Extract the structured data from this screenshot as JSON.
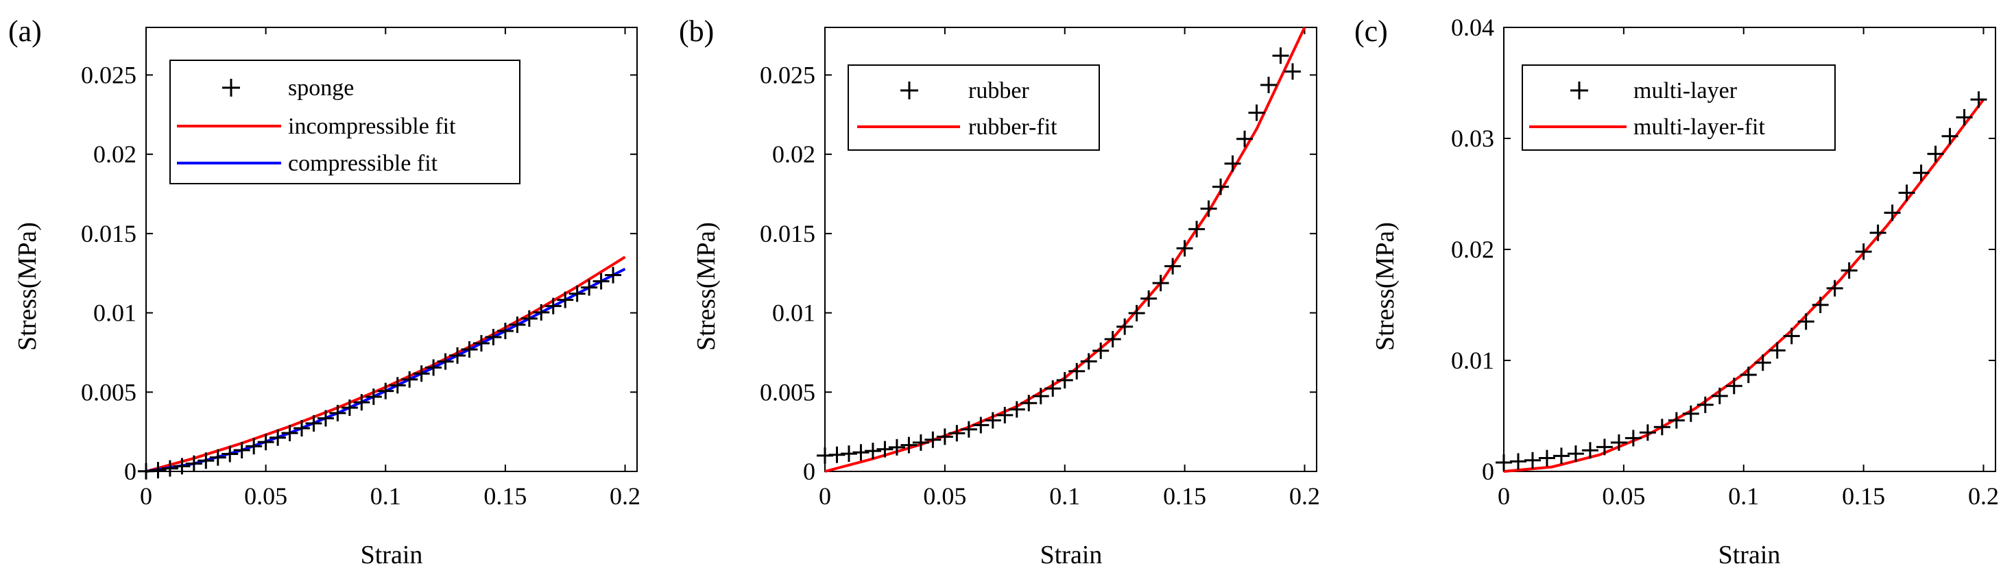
{
  "chart_data": [
    {
      "panel_label": "(a)",
      "type": "line",
      "xlabel": "Strain",
      "ylabel": "Stress(MPa)",
      "xlim": [
        0,
        0.205
      ],
      "ylim": [
        0,
        0.028
      ],
      "xticks": [
        0,
        0.05,
        0.1,
        0.15,
        0.2
      ],
      "xtick_labels": [
        "0",
        "0.05",
        "0.1",
        "0.15",
        "0.2"
      ],
      "yticks": [
        0,
        0.005,
        0.01,
        0.015,
        0.02,
        0.025
      ],
      "ytick_labels": [
        "0",
        "0.005",
        "0.01",
        "0.015",
        "0.02",
        "0.025"
      ],
      "legend": "top-left",
      "series": [
        {
          "name": "sponge",
          "kind": "markers",
          "marker": "+",
          "color": "#000000",
          "x": [
            0,
            0.005,
            0.01,
            0.015,
            0.02,
            0.025,
            0.03,
            0.035,
            0.04,
            0.045,
            0.05,
            0.055,
            0.06,
            0.065,
            0.07,
            0.075,
            0.08,
            0.085,
            0.09,
            0.095,
            0.1,
            0.105,
            0.11,
            0.115,
            0.12,
            0.125,
            0.13,
            0.135,
            0.14,
            0.145,
            0.15,
            0.155,
            0.16,
            0.165,
            0.17,
            0.175,
            0.18,
            0.185,
            0.19,
            0.195
          ],
          "y": [
            1e-05,
            8e-05,
            0.00019,
            0.00033,
            0.00049,
            0.00068,
            0.00088,
            0.0011,
            0.00134,
            0.00159,
            0.00185,
            0.00213,
            0.00242,
            0.00272,
            0.00303,
            0.00335,
            0.00368,
            0.00402,
            0.00436,
            0.00471,
            0.00507,
            0.00543,
            0.0058,
            0.00617,
            0.00655,
            0.00693,
            0.00731,
            0.00769,
            0.00808,
            0.00847,
            0.00886,
            0.00925,
            0.00964,
            0.01003,
            0.01043,
            0.01082,
            0.01121,
            0.0116,
            0.01199,
            0.01238
          ]
        },
        {
          "name": "incompressible fit",
          "kind": "line",
          "color": "#ff0000",
          "x": [
            0,
            0.02,
            0.04,
            0.06,
            0.08,
            0.1,
            0.12,
            0.14,
            0.16,
            0.18,
            0.2
          ],
          "y": [
            0,
            0.00083,
            0.00178,
            0.00284,
            0.00402,
            0.00531,
            0.00672,
            0.00824,
            0.00989,
            0.01165,
            0.01352
          ]
        },
        {
          "name": "compressible fit",
          "kind": "line",
          "color": "#0000ff",
          "x": [
            0,
            0.02,
            0.04,
            0.06,
            0.08,
            0.1,
            0.12,
            0.14,
            0.16,
            0.18,
            0.2
          ],
          "y": [
            0,
            0.00049,
            0.00134,
            0.00242,
            0.00368,
            0.00507,
            0.00655,
            0.00808,
            0.00964,
            0.01121,
            0.01277
          ]
        }
      ]
    },
    {
      "panel_label": "(b)",
      "type": "line",
      "xlabel": "Strain",
      "ylabel": "Stress(MPa)",
      "xlim": [
        0,
        0.205
      ],
      "ylim": [
        0,
        0.028
      ],
      "xticks": [
        0,
        0.05,
        0.1,
        0.15,
        0.2
      ],
      "xtick_labels": [
        "0",
        "0.05",
        "0.1",
        "0.15",
        "0.2"
      ],
      "yticks": [
        0,
        0.005,
        0.01,
        0.015,
        0.02,
        0.025
      ],
      "ytick_labels": [
        "0",
        "0.005",
        "0.01",
        "0.015",
        "0.02",
        "0.025"
      ],
      "legend": "top-left",
      "series": [
        {
          "name": "rubber",
          "kind": "markers",
          "marker": "+",
          "color": "#000000",
          "x": [
            0,
            0.005,
            0.01,
            0.015,
            0.02,
            0.025,
            0.03,
            0.035,
            0.04,
            0.045,
            0.05,
            0.055,
            0.06,
            0.065,
            0.07,
            0.075,
            0.08,
            0.085,
            0.09,
            0.095,
            0.1,
            0.105,
            0.11,
            0.115,
            0.12,
            0.125,
            0.13,
            0.135,
            0.14,
            0.145,
            0.15,
            0.155,
            0.16,
            0.165,
            0.17,
            0.175,
            0.18,
            0.185,
            0.19,
            0.195
          ],
          "y": [
            0.001,
            0.00105,
            0.00112,
            0.0012,
            0.00129,
            0.0014,
            0.00152,
            0.00166,
            0.00182,
            0.002,
            0.00219,
            0.00241,
            0.00265,
            0.00292,
            0.00322,
            0.00355,
            0.00391,
            0.00431,
            0.00475,
            0.00523,
            0.00575,
            0.00632,
            0.00694,
            0.00761,
            0.00834,
            0.00913,
            0.00998,
            0.0109,
            0.01188,
            0.01294,
            0.01407,
            0.01528,
            0.01657,
            0.01795,
            0.01941,
            0.02097,
            0.02262,
            0.02437,
            0.02622,
            0.02522
          ]
        },
        {
          "name": "rubber-fit",
          "kind": "line",
          "color": "#ff0000",
          "x": [
            0,
            0.02,
            0.04,
            0.06,
            0.08,
            0.1,
            0.12,
            0.14,
            0.16,
            0.18,
            0.2
          ],
          "y": [
            0,
            0.0008,
            0.0017,
            0.0028,
            0.0041,
            0.0059,
            0.0084,
            0.0119,
            0.0164,
            0.0216,
            0.028
          ]
        }
      ]
    },
    {
      "panel_label": "(c)",
      "type": "line",
      "xlabel": "Strain",
      "ylabel": "Stress(MPa)",
      "xlim": [
        0,
        0.205
      ],
      "ylim": [
        0,
        0.04
      ],
      "xticks": [
        0,
        0.05,
        0.1,
        0.15,
        0.2
      ],
      "xtick_labels": [
        "0",
        "0.05",
        "0.1",
        "0.15",
        "0.2"
      ],
      "yticks": [
        0,
        0.01,
        0.02,
        0.03,
        0.04
      ],
      "ytick_labels": [
        "0",
        "0.01",
        "0.02",
        "0.03",
        "0.04"
      ],
      "legend": "top-left",
      "series": [
        {
          "name": "multi-layer",
          "kind": "markers",
          "marker": "+",
          "color": "#000000",
          "x": [
            0,
            0.006,
            0.012,
            0.018,
            0.024,
            0.03,
            0.036,
            0.042,
            0.048,
            0.054,
            0.06,
            0.066,
            0.072,
            0.078,
            0.084,
            0.09,
            0.096,
            0.102,
            0.108,
            0.114,
            0.12,
            0.126,
            0.132,
            0.138,
            0.144,
            0.15,
            0.156,
            0.162,
            0.168,
            0.174,
            0.18,
            0.186,
            0.192,
            0.198
          ],
          "y": [
            0.0008,
            0.0009,
            0.001,
            0.0012,
            0.0014,
            0.0016,
            0.0019,
            0.0022,
            0.0026,
            0.003,
            0.0035,
            0.004,
            0.0046,
            0.0052,
            0.006,
            0.0068,
            0.0077,
            0.0087,
            0.0098,
            0.0109,
            0.0122,
            0.0135,
            0.015,
            0.0165,
            0.0181,
            0.0198,
            0.0215,
            0.0233,
            0.0251,
            0.0269,
            0.0286,
            0.0302,
            0.0319,
            0.0335
          ]
        },
        {
          "name": "multi-layer-fit",
          "kind": "line",
          "color": "#ff0000",
          "x": [
            0,
            0.02,
            0.04,
            0.06,
            0.08,
            0.1,
            0.12,
            0.14,
            0.16,
            0.18,
            0.2
          ],
          "y": [
            0,
            0.0004,
            0.0015,
            0.0033,
            0.0057,
            0.0088,
            0.0127,
            0.0172,
            0.0222,
            0.0278,
            0.0335
          ]
        }
      ]
    }
  ]
}
